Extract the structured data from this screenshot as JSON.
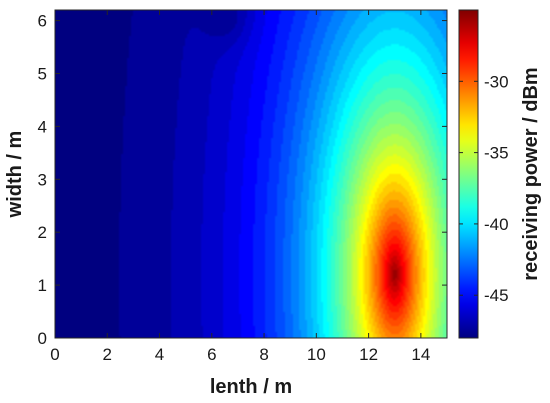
{
  "chart_data": {
    "type": "heatmap",
    "title": "",
    "xlabel": "lenth / m",
    "ylabel": "width / m",
    "colorbar_label": "receiving power / dBm",
    "xlim": [
      0,
      15
    ],
    "ylim": [
      0,
      6.2
    ],
    "clim": [
      -48,
      -25
    ],
    "x_ticks": [
      "0",
      "2",
      "4",
      "6",
      "8",
      "10",
      "12",
      "14"
    ],
    "y_ticks": [
      "0",
      "1",
      "2",
      "3",
      "4",
      "5",
      "6"
    ],
    "colorbar_ticks": [
      "-30",
      "-35",
      "-40",
      "-45"
    ],
    "colormap": "jet",
    "peak": {
      "x": 13.0,
      "y": 1.2,
      "value": -25
    },
    "samples": [
      {
        "x": 0,
        "y": 0,
        "value": -47
      },
      {
        "x": 4,
        "y": 1,
        "value": -44
      },
      {
        "x": 8,
        "y": 1,
        "value": -40
      },
      {
        "x": 10,
        "y": 1,
        "value": -36
      },
      {
        "x": 13,
        "y": 1,
        "value": -25
      },
      {
        "x": 13,
        "y": 4,
        "value": -35
      },
      {
        "x": 15,
        "y": 6.2,
        "value": -38
      },
      {
        "x": 6.5,
        "y": 6,
        "value": -47
      }
    ]
  }
}
